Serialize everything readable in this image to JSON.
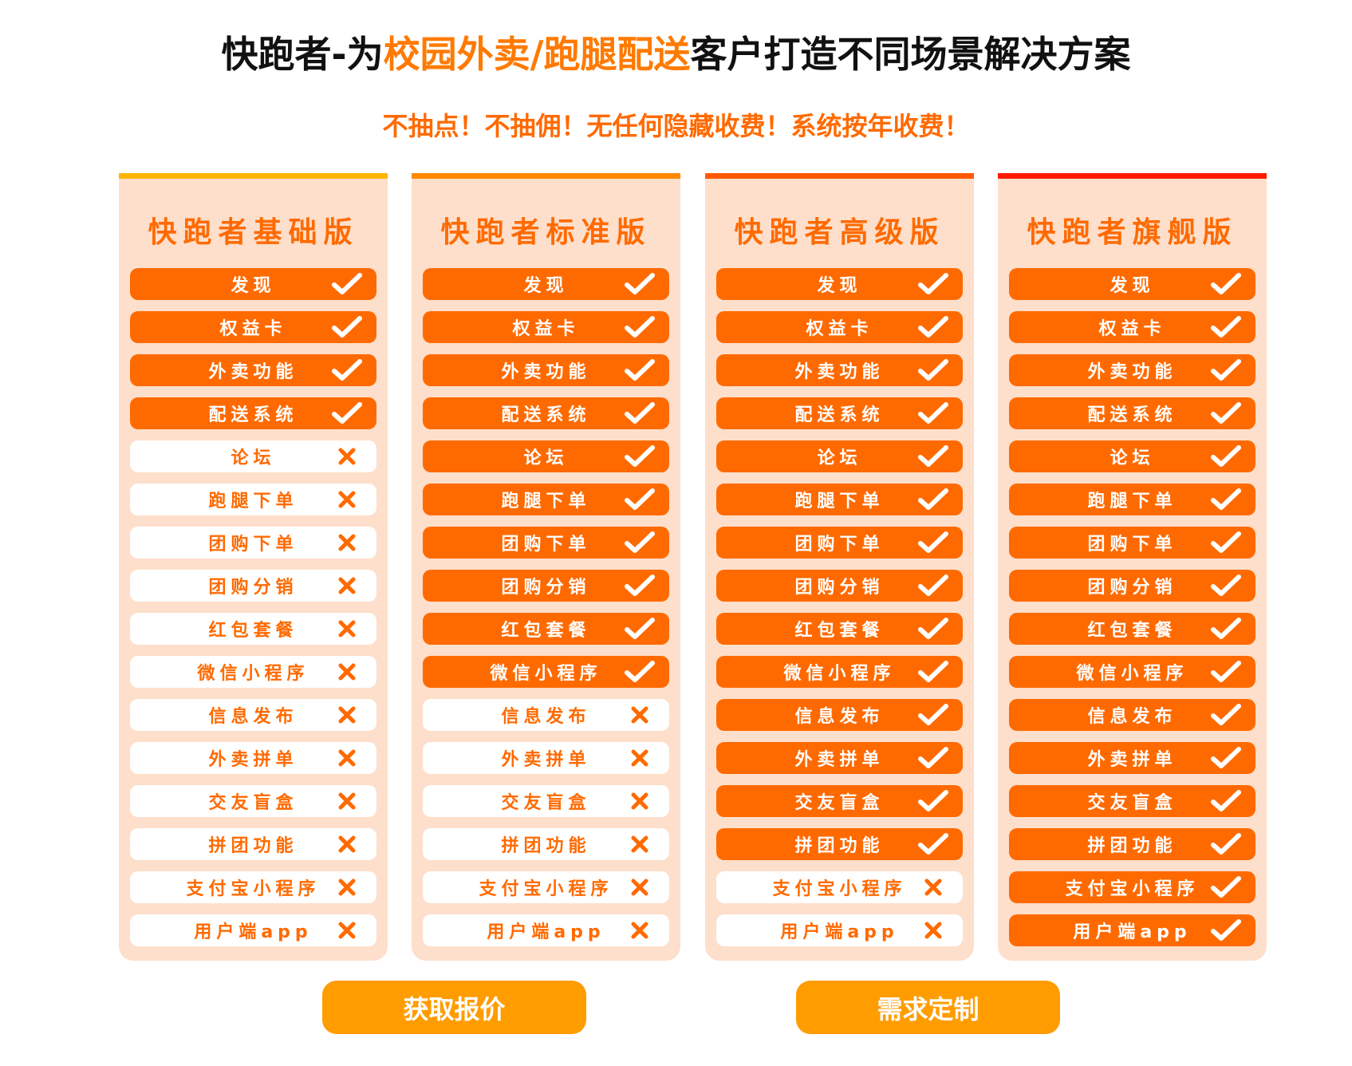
{
  "title": {
    "part1": "快跑者-为",
    "highlight": "校园外卖/跑腿配送",
    "part2": "客户打造不同场景解决方案"
  },
  "subtitle": "不抽点！不抽佣！无任何隐藏收费！系统按年收费！",
  "colors": {
    "accent": "#FF6A00",
    "row_off_bg": "#FFFFFF",
    "panel_bg": "#FDDFCB",
    "button": "#FF9C00"
  },
  "features": [
    "发现",
    "权益卡",
    "外卖功能",
    "配送系统",
    "论坛",
    "跑腿下单",
    "团购下单",
    "团购分销",
    "红包套餐",
    "微信小程序",
    "信息发布",
    "外卖拼单",
    "交友盲盒",
    "拼团功能",
    "支付宝小程序",
    "用户端app"
  ],
  "plans": [
    {
      "name": "快跑者基础版",
      "bar_color": "#FFB400",
      "included_count": 4
    },
    {
      "name": "快跑者标准版",
      "bar_color": "#FF8A00",
      "included_count": 10
    },
    {
      "name": "快跑者高级版",
      "bar_color": "#FF5A00",
      "included_count": 14
    },
    {
      "name": "快跑者旗舰版",
      "bar_color": "#FF1A00",
      "included_count": 16
    }
  ],
  "icons": {
    "included": "check-icon",
    "excluded": "cross-icon"
  },
  "buttons": {
    "quote": "获取报价",
    "custom": "需求定制"
  }
}
